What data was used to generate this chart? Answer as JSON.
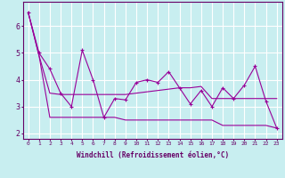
{
  "xlabel": "Windchill (Refroidissement éolien,°C)",
  "ylabel": "",
  "background_color": "#c8eef0",
  "line_color": "#990099",
  "grid_color": "#ffffff",
  "x_data": [
    0,
    1,
    2,
    3,
    4,
    5,
    6,
    7,
    8,
    9,
    10,
    11,
    12,
    13,
    14,
    15,
    16,
    17,
    18,
    19,
    20,
    21,
    22,
    23
  ],
  "line1": [
    6.5,
    5.0,
    4.4,
    3.5,
    3.0,
    5.1,
    4.0,
    2.6,
    3.3,
    3.25,
    3.9,
    4.0,
    3.9,
    4.3,
    3.7,
    3.1,
    3.6,
    3.0,
    3.7,
    3.3,
    3.8,
    4.5,
    3.2,
    2.2
  ],
  "line2": [
    6.5,
    4.9,
    3.5,
    3.45,
    3.45,
    3.45,
    3.45,
    3.45,
    3.45,
    3.45,
    3.5,
    3.55,
    3.6,
    3.65,
    3.7,
    3.7,
    3.75,
    3.3,
    3.3,
    3.3,
    3.3,
    3.3,
    3.3,
    3.3
  ],
  "line3": [
    6.5,
    4.9,
    2.6,
    2.6,
    2.6,
    2.6,
    2.6,
    2.6,
    2.6,
    2.5,
    2.5,
    2.5,
    2.5,
    2.5,
    2.5,
    2.5,
    2.5,
    2.5,
    2.3,
    2.3,
    2.3,
    2.3,
    2.3,
    2.2
  ],
  "xlim": [
    -0.5,
    23.5
  ],
  "ylim": [
    1.8,
    6.9
  ],
  "xtick_labels": [
    "0",
    "1",
    "2",
    "3",
    "4",
    "5",
    "6",
    "7",
    "8",
    "9",
    "10",
    "11",
    "12",
    "13",
    "14",
    "15",
    "16",
    "17",
    "18",
    "19",
    "20",
    "21",
    "22",
    "23"
  ],
  "ytick_values": [
    2,
    3,
    4,
    5,
    6
  ],
  "font_color": "#660066",
  "xlabel_fontsize": 5.5,
  "xtick_fontsize": 4.5,
  "ytick_fontsize": 6.0
}
